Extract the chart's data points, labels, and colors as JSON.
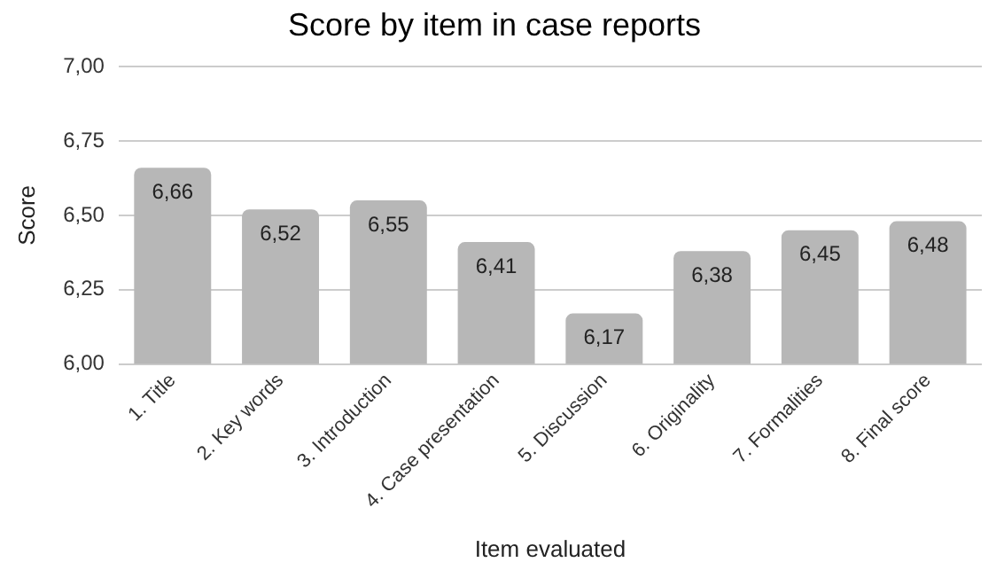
{
  "chart_data": {
    "type": "bar",
    "title": "Score by item in case reports",
    "xlabel": "Item evaluated",
    "ylabel": "Score",
    "categories": [
      "1. Title",
      "2. Key words",
      "3. Introduction",
      "4. Case presentation",
      "5. Discussion",
      "6. Originality",
      "7. Formalities",
      "8. Final score"
    ],
    "values": [
      6.66,
      6.52,
      6.55,
      6.41,
      6.17,
      6.38,
      6.45,
      6.48
    ],
    "value_labels": [
      "6,66",
      "6,52",
      "6,55",
      "6,41",
      "6,17",
      "6,38",
      "6,45",
      "6,48"
    ],
    "color": "#b7b7b7",
    "ylim": [
      6,
      7
    ],
    "yticks": [
      {
        "value": 6,
        "label": "6,00"
      },
      {
        "value": 6.25,
        "label": "6,25"
      },
      {
        "value": 6.5,
        "label": "6,50"
      },
      {
        "value": 6.75,
        "label": "6,75"
      },
      {
        "value": 7,
        "label": "7,00"
      }
    ],
    "grid": "y",
    "legend": false
  }
}
